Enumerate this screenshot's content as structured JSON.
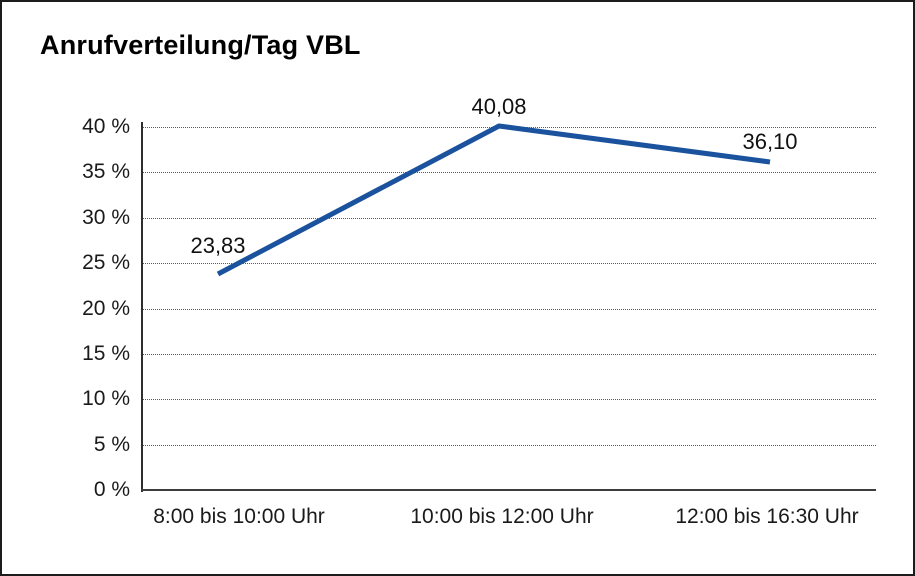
{
  "figure": {
    "title": "Anrufverteilung/Tag VBL"
  },
  "chart_data": {
    "type": "line",
    "title": "Anrufverteilung/Tag VBL",
    "categories": [
      "8:00 bis 10:00 Uhr",
      "10:00 bis 12:00 Uhr",
      "12:00 bis 16:30 Uhr"
    ],
    "values": [
      23.83,
      40.08,
      36.1
    ],
    "value_labels": [
      "23,83",
      "40,08",
      "36,10"
    ],
    "xlabel": "",
    "ylabel": "",
    "ylim": [
      0,
      40
    ],
    "ytick_step": 5,
    "ytick_labels": [
      "0 %",
      "5 %",
      "10 %",
      "15 %",
      "20 %",
      "25 %",
      "30 %",
      "35 %",
      "40 %"
    ],
    "grid": "horizontal-dotted",
    "legend": "none",
    "line_color": "#1a529e",
    "axis_color": "#2e2e2e",
    "text_color": "#1a1a1a"
  }
}
